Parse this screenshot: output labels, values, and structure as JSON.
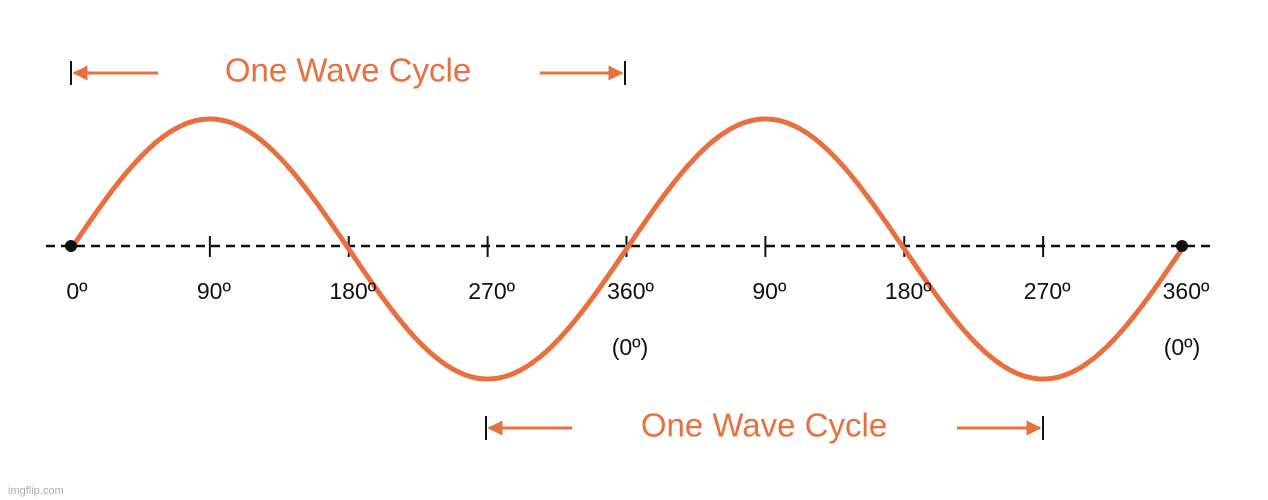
{
  "top_cycle": {
    "label": "One Wave Cycle"
  },
  "bottom_cycle": {
    "label": "One Wave Cycle"
  },
  "tick_labels": [
    "0º",
    "90º",
    "180º",
    "270º",
    "360º",
    "90º",
    "180º",
    "270º",
    "360º"
  ],
  "sub_labels": [
    "(0º)",
    "(0º)"
  ],
  "watermark": "imgflip.com"
}
